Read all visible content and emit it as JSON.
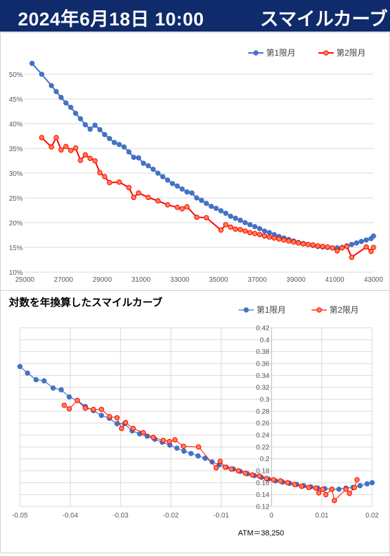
{
  "header": {
    "date_text": "2024年6月18日 10:00",
    "title": "スマイルカーブ"
  },
  "colors": {
    "header_bg": "#0f2b6b",
    "series1": "#4472c4",
    "series2": "#ff0000",
    "series2_fill": "#ff7f50",
    "grid": "#d9d9d9"
  },
  "chart_data": [
    {
      "type": "line",
      "title": "",
      "legend_position": "top-right",
      "grid": true,
      "x_ticks": [
        "25000",
        "27000",
        "29000",
        "31000",
        "33000",
        "35000",
        "37000",
        "39000",
        "41000",
        "43000"
      ],
      "y_ticks": [
        "10%",
        "15%",
        "20%",
        "25%",
        "30%",
        "35%",
        "40%",
        "45%",
        "50%"
      ],
      "xlim": [
        25000,
        43000
      ],
      "ylim": [
        10,
        52.5
      ],
      "series": [
        {
          "name": "第1限月",
          "points": [
            [
              25375,
              52.2
            ],
            [
              25875,
              50.0
            ],
            [
              26375,
              47.7
            ],
            [
              26625,
              46.5
            ],
            [
              26875,
              45.3
            ],
            [
              27125,
              44.2
            ],
            [
              27375,
              43.3
            ],
            [
              27625,
              42.1
            ],
            [
              27875,
              41.0
            ],
            [
              28125,
              39.8
            ],
            [
              28375,
              38.9
            ],
            [
              28625,
              39.7
            ],
            [
              28875,
              38.8
            ],
            [
              29125,
              37.8
            ],
            [
              29375,
              37.0
            ],
            [
              29625,
              36.2
            ],
            [
              29875,
              35.8
            ],
            [
              30125,
              35.3
            ],
            [
              30375,
              34.3
            ],
            [
              30625,
              33.2
            ],
            [
              30875,
              33.1
            ],
            [
              31125,
              32.0
            ],
            [
              31375,
              31.5
            ],
            [
              31625,
              30.8
            ],
            [
              31875,
              30.0
            ],
            [
              32125,
              29.3
            ],
            [
              32375,
              28.6
            ],
            [
              32625,
              27.9
            ],
            [
              32875,
              27.4
            ],
            [
              33125,
              26.8
            ],
            [
              33375,
              26.2
            ],
            [
              33625,
              26.0
            ],
            [
              33875,
              25.0
            ],
            [
              34125,
              24.5
            ],
            [
              34375,
              23.9
            ],
            [
              34625,
              23.3
            ],
            [
              34875,
              22.9
            ],
            [
              35125,
              22.4
            ],
            [
              35375,
              21.9
            ],
            [
              35625,
              21.3
            ],
            [
              35875,
              20.9
            ],
            [
              36125,
              20.5
            ],
            [
              36375,
              20.0
            ],
            [
              36625,
              19.6
            ],
            [
              36875,
              19.2
            ],
            [
              37125,
              18.8
            ],
            [
              37375,
              18.3
            ],
            [
              37625,
              18.0
            ],
            [
              37875,
              17.6
            ],
            [
              38125,
              17.2
            ],
            [
              38375,
              16.9
            ],
            [
              38625,
              16.6
            ],
            [
              38875,
              16.3
            ],
            [
              39125,
              16.0
            ],
            [
              39375,
              15.8
            ],
            [
              39625,
              15.6
            ],
            [
              39875,
              15.4
            ],
            [
              40125,
              15.2
            ],
            [
              40375,
              15.1
            ],
            [
              40625,
              15.0
            ],
            [
              40875,
              14.9
            ],
            [
              41125,
              14.9
            ],
            [
              41375,
              15.0
            ],
            [
              41625,
              15.3
            ],
            [
              41875,
              15.6
            ],
            [
              42125,
              15.9
            ],
            [
              42375,
              16.2
            ],
            [
              42625,
              16.5
            ],
            [
              42875,
              16.8
            ],
            [
              43000,
              17.3
            ]
          ]
        },
        {
          "name": "第2限月",
          "points": [
            [
              25875,
              37.2
            ],
            [
              26375,
              35.3
            ],
            [
              26625,
              37.2
            ],
            [
              26875,
              34.7
            ],
            [
              27125,
              35.4
            ],
            [
              27375,
              34.6
            ],
            [
              27625,
              35.1
            ],
            [
              27875,
              32.6
            ],
            [
              28125,
              33.7
            ],
            [
              28375,
              33.0
            ],
            [
              28625,
              32.5
            ],
            [
              28875,
              30.1
            ],
            [
              29125,
              29.3
            ],
            [
              29375,
              28.1
            ],
            [
              29875,
              28.2
            ],
            [
              30375,
              27.1
            ],
            [
              30625,
              25.1
            ],
            [
              30875,
              26.0
            ],
            [
              31375,
              25.1
            ],
            [
              31875,
              24.4
            ],
            [
              32375,
              23.6
            ],
            [
              32875,
              23.1
            ],
            [
              33125,
              22.8
            ],
            [
              33375,
              23.2
            ],
            [
              33875,
              21.1
            ],
            [
              34375,
              21.0
            ],
            [
              35125,
              18.5
            ],
            [
              35375,
              19.6
            ],
            [
              35625,
              19.1
            ],
            [
              35875,
              18.7
            ],
            [
              36125,
              18.6
            ],
            [
              36375,
              18.3
            ],
            [
              36625,
              18.0
            ],
            [
              36875,
              17.8
            ],
            [
              37125,
              17.6
            ],
            [
              37375,
              17.3
            ],
            [
              37625,
              17.1
            ],
            [
              37875,
              16.9
            ],
            [
              38125,
              16.7
            ],
            [
              38375,
              16.5
            ],
            [
              38625,
              16.3
            ],
            [
              38875,
              16.1
            ],
            [
              39125,
              15.9
            ],
            [
              39375,
              15.7
            ],
            [
              39625,
              15.6
            ],
            [
              39875,
              15.5
            ],
            [
              40125,
              15.3
            ],
            [
              40375,
              15.2
            ],
            [
              40625,
              15.1
            ],
            [
              40875,
              14.9
            ],
            [
              41125,
              14.3
            ],
            [
              41375,
              14.9
            ],
            [
              41625,
              15.2
            ],
            [
              41875,
              13.0
            ],
            [
              42625,
              15.1
            ],
            [
              42875,
              14.2
            ],
            [
              43000,
              15.0
            ]
          ]
        }
      ]
    },
    {
      "type": "scatter",
      "title": "対数を年換算したスマイルカーブ",
      "legend_position": "top-right",
      "grid": true,
      "x_ticks": [
        "-0.05",
        "-0.04",
        "-0.03",
        "-0.02",
        "-0.01",
        "0",
        "0.01",
        "0.02"
      ],
      "y_ticks": [
        "0.12",
        "0.14",
        "0.16",
        "0.18",
        "0.2",
        "0.22",
        "0.24",
        "0.26",
        "0.28",
        "0.3",
        "0.32",
        "0.34",
        "0.36",
        "0.38",
        "0.4",
        "0.42"
      ],
      "xlim": [
        -0.05,
        0.02
      ],
      "ylim": [
        0.12,
        0.42
      ],
      "annotation": "ATM＝38,250",
      "series": [
        {
          "name": "第1限月",
          "points": [
            [
              -0.05,
              0.355
            ],
            [
              -0.0485,
              0.344
            ],
            [
              -0.0468,
              0.333
            ],
            [
              -0.0452,
              0.331
            ],
            [
              -0.0434,
              0.319
            ],
            [
              -0.0418,
              0.316
            ],
            [
              -0.0402,
              0.304
            ],
            [
              -0.0386,
              0.298
            ],
            [
              -0.037,
              0.288
            ],
            [
              -0.0354,
              0.281
            ],
            [
              -0.0338,
              0.273
            ],
            [
              -0.0322,
              0.268
            ],
            [
              -0.0307,
              0.259
            ],
            [
              -0.0292,
              0.259
            ],
            [
              -0.0277,
              0.247
            ],
            [
              -0.0262,
              0.242
            ],
            [
              -0.0247,
              0.238
            ],
            [
              -0.0232,
              0.233
            ],
            [
              -0.0217,
              0.228
            ],
            [
              -0.0202,
              0.223
            ],
            [
              -0.0188,
              0.218
            ],
            [
              -0.0174,
              0.213
            ],
            [
              -0.016,
              0.209
            ],
            [
              -0.0146,
              0.205
            ],
            [
              -0.0132,
              0.201
            ],
            [
              -0.0118,
              0.195
            ],
            [
              -0.0104,
              0.19
            ],
            [
              -0.009,
              0.186
            ],
            [
              -0.0076,
              0.183
            ],
            [
              -0.0062,
              0.179
            ],
            [
              -0.0048,
              0.175
            ],
            [
              -0.0034,
              0.172
            ],
            [
              -0.002,
              0.169
            ],
            [
              -0.0006,
              0.166
            ],
            [
              0.0008,
              0.163
            ],
            [
              0.0022,
              0.161
            ],
            [
              0.0036,
              0.159
            ],
            [
              0.005,
              0.157
            ],
            [
              0.0064,
              0.155
            ],
            [
              0.0078,
              0.153
            ],
            [
              0.0092,
              0.151
            ],
            [
              0.0106,
              0.15
            ],
            [
              0.012,
              0.149
            ],
            [
              0.0134,
              0.149
            ],
            [
              0.0148,
              0.151
            ],
            [
              0.0162,
              0.152
            ],
            [
              0.0176,
              0.155
            ],
            [
              0.019,
              0.158
            ],
            [
              0.02,
              0.16
            ]
          ]
        },
        {
          "name": "第2限月",
          "points": [
            [
              -0.0412,
              0.29
            ],
            [
              -0.0402,
              0.284
            ],
            [
              -0.0386,
              0.298
            ],
            [
              -0.037,
              0.285
            ],
            [
              -0.0354,
              0.283
            ],
            [
              -0.0338,
              0.283
            ],
            [
              -0.0322,
              0.271
            ],
            [
              -0.0307,
              0.269
            ],
            [
              -0.0298,
              0.251
            ],
            [
              -0.029,
              0.261
            ],
            [
              -0.0275,
              0.251
            ],
            [
              -0.0255,
              0.244
            ],
            [
              -0.0235,
              0.236
            ],
            [
              -0.0215,
              0.231
            ],
            [
              -0.0203,
              0.229
            ],
            [
              -0.0192,
              0.232
            ],
            [
              -0.0175,
              0.221
            ],
            [
              -0.0145,
              0.22
            ],
            [
              -0.011,
              0.185
            ],
            [
              -0.0102,
              0.196
            ],
            [
              -0.0092,
              0.186
            ],
            [
              -0.008,
              0.183
            ],
            [
              -0.0066,
              0.18
            ],
            [
              -0.0052,
              0.176
            ],
            [
              -0.0038,
              0.173
            ],
            [
              -0.0024,
              0.171
            ],
            [
              -0.001,
              0.167
            ],
            [
              0.0004,
              0.165
            ],
            [
              0.0018,
              0.163
            ],
            [
              0.0032,
              0.16
            ],
            [
              0.0046,
              0.157
            ],
            [
              0.006,
              0.154
            ],
            [
              0.0074,
              0.152
            ],
            [
              0.0088,
              0.151
            ],
            [
              0.0094,
              0.143
            ],
            [
              0.0102,
              0.149
            ],
            [
              0.0108,
              0.14
            ],
            [
              0.012,
              0.149
            ],
            [
              0.0125,
              0.13
            ],
            [
              0.0148,
              0.149
            ],
            [
              0.0155,
              0.142
            ],
            [
              0.0165,
              0.152
            ],
            [
              0.017,
              0.165
            ]
          ]
        }
      ]
    }
  ]
}
